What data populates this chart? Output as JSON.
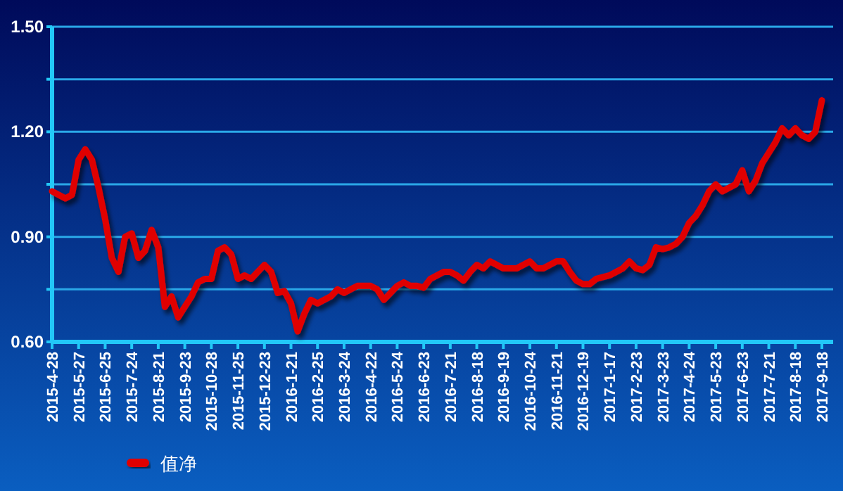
{
  "chart_data": {
    "type": "line",
    "categories": [
      "2015-4-28",
      null,
      null,
      null,
      "2015-5-27",
      null,
      null,
      null,
      "2015-6-25",
      null,
      null,
      null,
      "2015-7-24",
      null,
      null,
      null,
      "2015-8-21",
      null,
      null,
      null,
      "2015-9-23",
      null,
      null,
      null,
      "2015-10-28",
      null,
      null,
      null,
      "2015-11-25",
      null,
      null,
      null,
      "2015-12-23",
      null,
      null,
      null,
      "2016-1-21",
      null,
      null,
      null,
      "2016-2-25",
      null,
      null,
      null,
      "2016-3-24",
      null,
      null,
      null,
      "2016-4-22",
      null,
      null,
      null,
      "2016-5-24",
      null,
      null,
      null,
      "2016-6-23",
      null,
      null,
      null,
      "2016-7-21",
      null,
      null,
      null,
      "2016-8-18",
      null,
      null,
      null,
      "2016-9-19",
      null,
      null,
      null,
      "2016-10-24",
      null,
      null,
      null,
      "2016-11-21",
      null,
      null,
      null,
      "2016-12-19",
      null,
      null,
      null,
      "2017-1-17",
      null,
      null,
      null,
      "2017-2-23",
      null,
      null,
      null,
      "2017-3-23",
      null,
      null,
      null,
      "2017-4-24",
      null,
      null,
      null,
      "2017-5-23",
      null,
      null,
      null,
      "2017-6-23",
      null,
      null,
      null,
      "2017-7-21",
      null,
      null,
      null,
      "2017-8-18",
      null,
      null,
      null,
      "2017-9-18"
    ],
    "series": [
      {
        "name": "值净",
        "color": "#e00000",
        "values": [
          1.03,
          1.02,
          1.01,
          1.02,
          1.12,
          1.15,
          1.12,
          1.04,
          0.95,
          0.84,
          0.8,
          0.9,
          0.91,
          0.84,
          0.86,
          0.92,
          0.87,
          0.7,
          0.73,
          0.67,
          0.7,
          0.73,
          0.77,
          0.78,
          0.78,
          0.86,
          0.87,
          0.85,
          0.78,
          0.79,
          0.78,
          0.8,
          0.82,
          0.8,
          0.74,
          0.745,
          0.71,
          0.63,
          0.68,
          0.72,
          0.71,
          0.72,
          0.73,
          0.75,
          0.74,
          0.75,
          0.76,
          0.76,
          0.76,
          0.75,
          0.72,
          0.74,
          0.76,
          0.77,
          0.76,
          0.76,
          0.755,
          0.78,
          0.79,
          0.8,
          0.8,
          0.79,
          0.775,
          0.8,
          0.82,
          0.81,
          0.83,
          0.82,
          0.81,
          0.81,
          0.81,
          0.82,
          0.83,
          0.81,
          0.81,
          0.82,
          0.83,
          0.83,
          0.8,
          0.775,
          0.765,
          0.765,
          0.78,
          0.785,
          0.79,
          0.8,
          0.81,
          0.83,
          0.81,
          0.805,
          0.82,
          0.87,
          0.865,
          0.87,
          0.88,
          0.9,
          0.94,
          0.96,
          0.99,
          1.03,
          1.05,
          1.03,
          1.04,
          1.05,
          1.09,
          1.03,
          1.06,
          1.11,
          1.14,
          1.17,
          1.21,
          1.19,
          1.21,
          1.19,
          1.18,
          1.2,
          1.29
        ]
      }
    ],
    "ylim": [
      0.6,
      1.5
    ],
    "yticks": [
      {
        "value": 0.6,
        "label": "0.60"
      },
      {
        "value": 0.75,
        "label": null
      },
      {
        "value": 0.9,
        "label": "0.90"
      },
      {
        "value": 1.05,
        "label": null
      },
      {
        "value": 1.2,
        "label": "1.20"
      },
      {
        "value": 1.35,
        "label": null
      },
      {
        "value": 1.5,
        "label": "1.50"
      }
    ],
    "grid": "y",
    "legend": "bottom left"
  }
}
